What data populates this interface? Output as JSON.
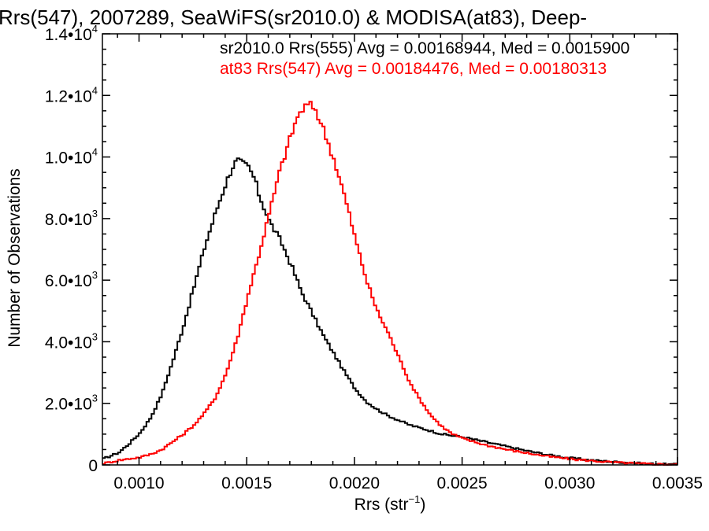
{
  "chart_data": {
    "type": "histogram",
    "title": "Rrs(547), 2007289, SeaWiFS(sr2010.0) & MODISA(at83), Deep-",
    "xlabel": "Rrs (str",
    "xlabel_sup": "−1",
    "xlabel_close": ")",
    "ylabel": "Number of Observations",
    "xlim": [
      0.00083,
      0.0035
    ],
    "ylim": [
      0,
      14000
    ],
    "x_ticks": [
      {
        "value": 0.001,
        "label": "0.0010"
      },
      {
        "value": 0.0015,
        "label": "0.0015"
      },
      {
        "value": 0.002,
        "label": "0.0020"
      },
      {
        "value": 0.0025,
        "label": "0.0025"
      },
      {
        "value": 0.003,
        "label": "0.0030"
      },
      {
        "value": 0.0035,
        "label": "0.0035"
      }
    ],
    "y_ticks": [
      {
        "value": 0,
        "mant": "0",
        "exp": ""
      },
      {
        "value": 2000,
        "mant": "2.0•10",
        "exp": "3"
      },
      {
        "value": 4000,
        "mant": "4.0•10",
        "exp": "3"
      },
      {
        "value": 6000,
        "mant": "6.0•10",
        "exp": "3"
      },
      {
        "value": 8000,
        "mant": "8.0•10",
        "exp": "3"
      },
      {
        "value": 10000,
        "mant": "1.0•10",
        "exp": "4"
      },
      {
        "value": 12000,
        "mant": "1.2•10",
        "exp": "4"
      },
      {
        "value": 14000,
        "mant": "1.4•10",
        "exp": "4"
      }
    ],
    "minor_ticks_per_major_x": 5,
    "minor_ticks_per_major_y": 4,
    "legend": [
      {
        "text": "sr2010.0 Rrs(555) Avg = 0.00168944, Med = 0.0015900",
        "color": "#000000"
      },
      {
        "text": "at83 Rrs(547) Avg = 0.00184476, Med = 0.00180313",
        "color": "#ff0000"
      }
    ],
    "legend_position": "top-right",
    "series": [
      {
        "color": "#000000",
        "points": [
          [
            0.00083,
            200
          ],
          [
            0.0009,
            400
          ],
          [
            0.00095,
            700
          ],
          [
            0.001,
            1050
          ],
          [
            0.00105,
            1550
          ],
          [
            0.0011,
            2300
          ],
          [
            0.00115,
            3350
          ],
          [
            0.0012,
            4500
          ],
          [
            0.00125,
            5800
          ],
          [
            0.0013,
            7100
          ],
          [
            0.00135,
            8200
          ],
          [
            0.0014,
            9200
          ],
          [
            0.00143,
            9700
          ],
          [
            0.00145,
            9900
          ],
          [
            0.00147,
            9800
          ],
          [
            0.0015,
            9700
          ],
          [
            0.00153,
            9300
          ],
          [
            0.00155,
            8800
          ],
          [
            0.0016,
            7900
          ],
          [
            0.00165,
            7300
          ],
          [
            0.0017,
            6500
          ],
          [
            0.00175,
            5600
          ],
          [
            0.0018,
            4900
          ],
          [
            0.00185,
            4200
          ],
          [
            0.0019,
            3600
          ],
          [
            0.00195,
            3000
          ],
          [
            0.002,
            2450
          ],
          [
            0.00205,
            2050
          ],
          [
            0.0021,
            1800
          ],
          [
            0.00215,
            1600
          ],
          [
            0.0022,
            1450
          ],
          [
            0.00225,
            1300
          ],
          [
            0.0023,
            1200
          ],
          [
            0.00235,
            1100
          ],
          [
            0.0024,
            1000
          ],
          [
            0.00245,
            950
          ],
          [
            0.0025,
            900
          ],
          [
            0.0026,
            750
          ],
          [
            0.0027,
            600
          ],
          [
            0.0028,
            450
          ],
          [
            0.0029,
            320
          ],
          [
            0.003,
            220
          ],
          [
            0.0031,
            150
          ],
          [
            0.0032,
            100
          ],
          [
            0.0033,
            60
          ],
          [
            0.0034,
            30
          ],
          [
            0.0035,
            10
          ]
        ]
      },
      {
        "color": "#ff0000",
        "points": [
          [
            0.00083,
            50
          ],
          [
            0.0009,
            150
          ],
          [
            0.00095,
            200
          ],
          [
            0.001,
            250
          ],
          [
            0.00105,
            350
          ],
          [
            0.0011,
            500
          ],
          [
            0.00115,
            750
          ],
          [
            0.0012,
            1000
          ],
          [
            0.00125,
            1300
          ],
          [
            0.0013,
            1700
          ],
          [
            0.00135,
            2200
          ],
          [
            0.0014,
            3000
          ],
          [
            0.00145,
            4100
          ],
          [
            0.0015,
            5500
          ],
          [
            0.00155,
            6800
          ],
          [
            0.0016,
            8200
          ],
          [
            0.00165,
            9600
          ],
          [
            0.0017,
            10700
          ],
          [
            0.00173,
            11300
          ],
          [
            0.00176,
            11600
          ],
          [
            0.00178,
            11700
          ],
          [
            0.00181,
            11600
          ],
          [
            0.00185,
            10900
          ],
          [
            0.0019,
            9900
          ],
          [
            0.00195,
            8700
          ],
          [
            0.002,
            7300
          ],
          [
            0.00205,
            6000
          ],
          [
            0.0021,
            5000
          ],
          [
            0.00215,
            4300
          ],
          [
            0.0022,
            3500
          ],
          [
            0.00225,
            2700
          ],
          [
            0.0023,
            2100
          ],
          [
            0.00235,
            1600
          ],
          [
            0.0024,
            1250
          ],
          [
            0.00245,
            1000
          ],
          [
            0.0025,
            850
          ],
          [
            0.00255,
            750
          ],
          [
            0.0026,
            650
          ],
          [
            0.0027,
            500
          ],
          [
            0.0028,
            380
          ],
          [
            0.0029,
            270
          ],
          [
            0.003,
            190
          ],
          [
            0.0031,
            130
          ],
          [
            0.0032,
            80
          ],
          [
            0.0033,
            50
          ],
          [
            0.0034,
            25
          ],
          [
            0.0035,
            10
          ]
        ]
      }
    ]
  }
}
